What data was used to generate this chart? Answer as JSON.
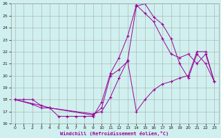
{
  "xlabel": "Windchill (Refroidissement éolien,°C)",
  "bg_color": "#cff0ee",
  "grid_color": "#aaaaaa",
  "line_color": "#990099",
  "xlim": [
    -0.5,
    23.5
  ],
  "ylim": [
    16,
    26
  ],
  "xticks": [
    0,
    1,
    2,
    3,
    4,
    5,
    6,
    7,
    8,
    9,
    10,
    11,
    12,
    13,
    14,
    15,
    16,
    17,
    18,
    19,
    20,
    21,
    22,
    23
  ],
  "yticks": [
    16,
    17,
    18,
    19,
    20,
    21,
    22,
    23,
    24,
    25,
    26
  ],
  "series": [
    {
      "x": [
        0,
        1,
        2,
        3,
        4,
        5,
        6,
        7,
        8,
        9,
        10,
        11,
        12,
        13,
        14,
        15,
        16,
        17,
        18,
        19,
        20,
        21,
        22,
        23
      ],
      "y": [
        18,
        18,
        18,
        17.5,
        17.3,
        16.6,
        16.6,
        16.6,
        16.6,
        16.6,
        17.8,
        20.2,
        21.5,
        23.3,
        25.9,
        25.2,
        24.5,
        23.1,
        21.8,
        21.5,
        21.8,
        21.0,
        21.8,
        19.5
      ]
    },
    {
      "x": [
        0,
        2,
        3,
        4,
        9,
        10,
        11,
        12,
        13,
        14,
        15,
        16,
        17,
        18,
        19,
        20,
        21,
        22,
        23
      ],
      "y": [
        18,
        17.6,
        17.3,
        17.3,
        16.8,
        17.0,
        18.2,
        19.8,
        21.3,
        25.8,
        26.0,
        24.9,
        24.3,
        23.1,
        21.0,
        19.8,
        21.8,
        21.0,
        19.5
      ]
    },
    {
      "x": [
        0,
        3,
        4,
        9,
        10,
        11,
        12,
        13,
        14,
        15,
        16,
        17,
        18,
        19,
        20,
        21,
        22,
        23
      ],
      "y": [
        18,
        17.5,
        17.3,
        16.7,
        17.3,
        20.0,
        20.5,
        21.2,
        17.0,
        18.0,
        18.8,
        19.3,
        19.5,
        19.8,
        20.0,
        22.0,
        22.0,
        19.5
      ]
    }
  ]
}
